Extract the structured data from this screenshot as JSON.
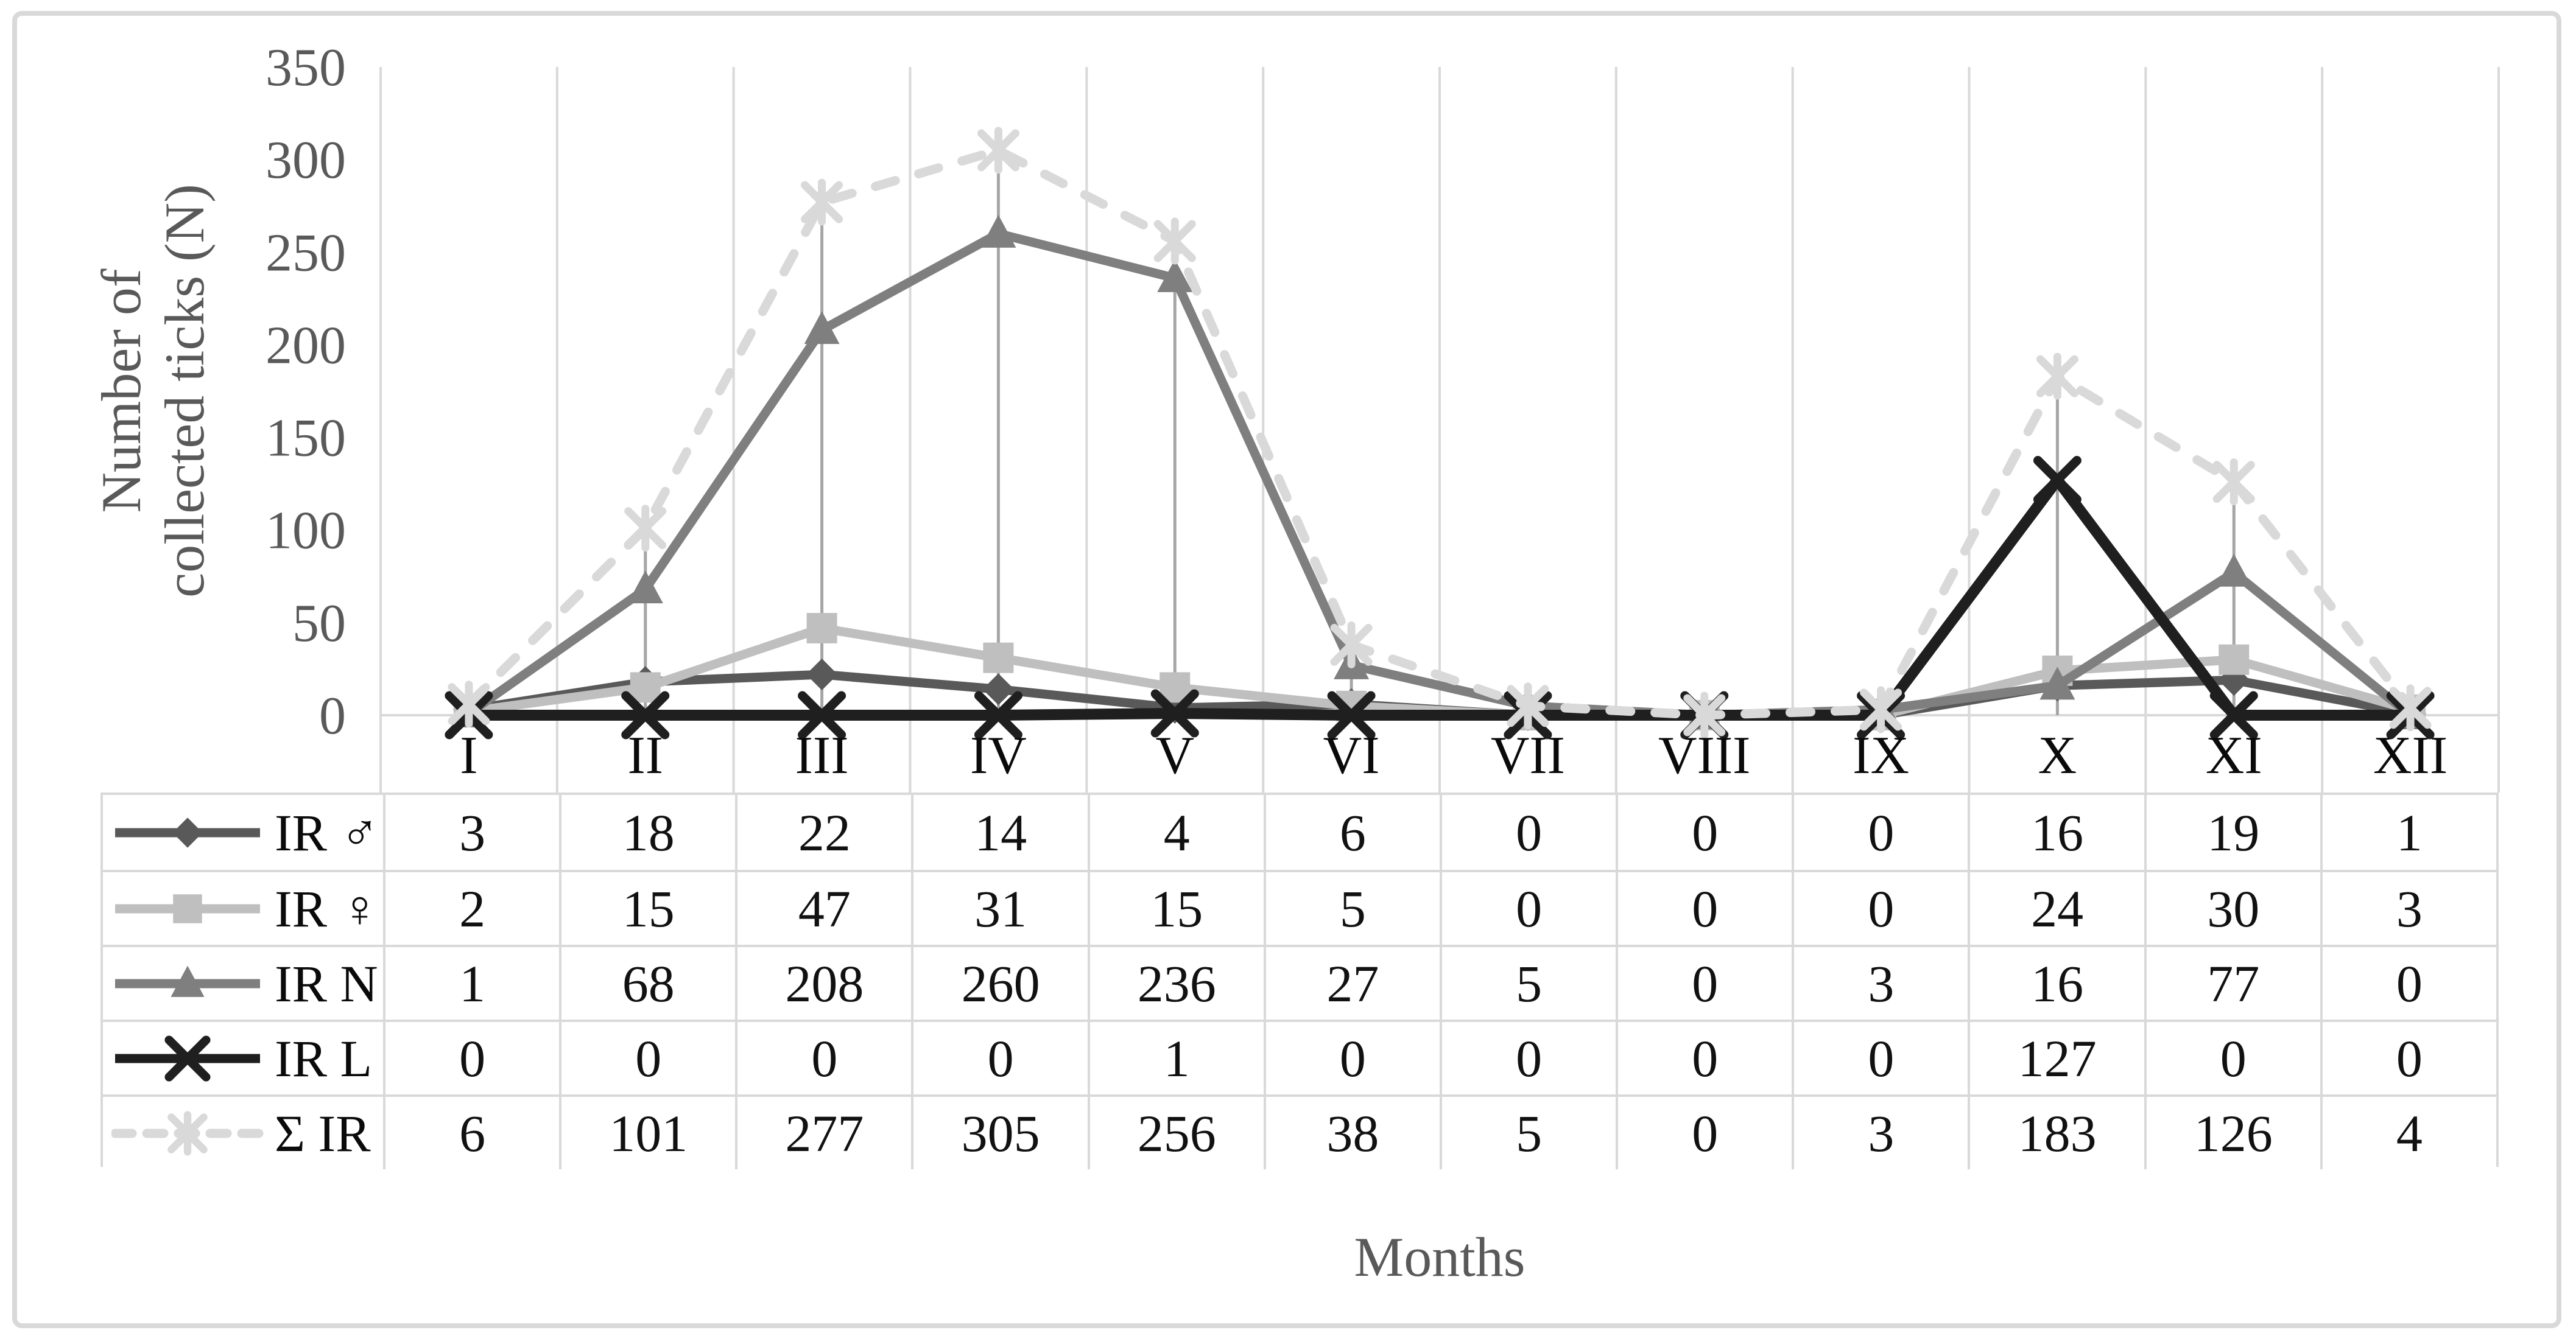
{
  "figure": {
    "background": "#ffffff",
    "border_color": "#d9d9d9"
  },
  "chart_data": {
    "type": "line",
    "title": "",
    "xlabel": "Months",
    "ylabel": "Number of collected ticks (N)",
    "y_axis_title_lines": [
      "Number of",
      "collected ticks (N)"
    ],
    "ylim": [
      0,
      350
    ],
    "yticks": [
      0,
      50,
      100,
      150,
      200,
      250,
      300,
      350
    ],
    "categories": [
      "I",
      "II",
      "III",
      "IV",
      "V",
      "VI",
      "VII",
      "VIII",
      "IX",
      "X",
      "XI",
      "XII"
    ],
    "grid": "vertical-only",
    "legend_position": "data-table-left-column",
    "drop_lines": true,
    "series": [
      {
        "name": "IR ♂",
        "marker": "diamond",
        "line": "solid",
        "color": "#595959",
        "values": [
          3,
          18,
          22,
          14,
          4,
          6,
          0,
          0,
          0,
          16,
          19,
          1
        ]
      },
      {
        "name": "IR ♀",
        "marker": "square",
        "line": "solid",
        "color": "#bfbfbf",
        "values": [
          2,
          15,
          47,
          31,
          15,
          5,
          0,
          0,
          0,
          24,
          30,
          3
        ]
      },
      {
        "name": "IR N",
        "marker": "triangle",
        "line": "solid",
        "color": "#7f7f7f",
        "values": [
          1,
          68,
          208,
          260,
          236,
          27,
          5,
          0,
          3,
          16,
          77,
          0
        ]
      },
      {
        "name": "IR L",
        "marker": "x",
        "line": "solid",
        "color": "#1f1f1f",
        "values": [
          0,
          0,
          0,
          0,
          1,
          0,
          0,
          0,
          0,
          127,
          0,
          0
        ]
      },
      {
        "name": "Σ IR",
        "marker": "star",
        "line": "dashed",
        "color": "#d9d9d9",
        "values": [
          6,
          101,
          277,
          305,
          256,
          38,
          5,
          0,
          3,
          183,
          126,
          4
        ]
      }
    ],
    "colors": {
      "gridline": "#d9d9d9",
      "axis_line": "#d9d9d9",
      "drop_line": "#a6a6a6",
      "axis_tick_text": "#595959",
      "axis_title_text": "#595959",
      "category_text": "#0a0a0a",
      "table_text": "#111111",
      "table_border": "#d9d9d9"
    }
  }
}
